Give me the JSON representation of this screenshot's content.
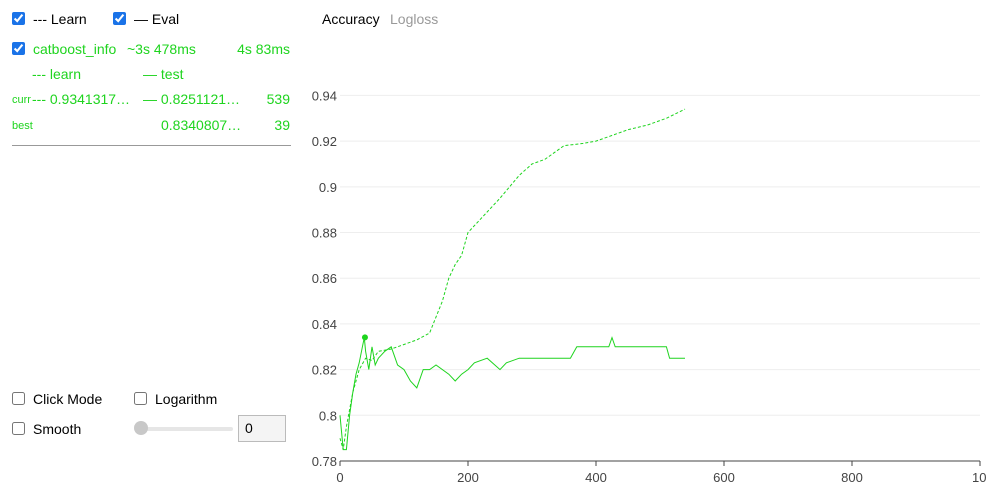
{
  "legend": {
    "learn_label": "--- Learn",
    "eval_label": "— Eval"
  },
  "run": {
    "name": "catboost_info",
    "elapsed": "~3s 478ms",
    "total": "4s 83ms"
  },
  "table": {
    "learn_header": "--- learn",
    "test_header": "— test",
    "curr_label": "curr",
    "curr_learn": "--- 0.9341317…",
    "curr_test": "— 0.8251121…",
    "curr_iter": "539",
    "best_label": "best",
    "best_test": "0.8340807…",
    "best_iter": "39"
  },
  "tabs": {
    "accuracy": "Accuracy",
    "logloss": "Logloss"
  },
  "controls": {
    "click_mode": "Click Mode",
    "logarithm": "Logarithm",
    "smooth": "Smooth",
    "smooth_value": "0"
  },
  "colors": {
    "series": "#1ed41e",
    "checkbox": "#1a73e8"
  },
  "chart_data": {
    "type": "line",
    "title": "Accuracy",
    "xlim": [
      0,
      1000
    ],
    "ylim": [
      0.78,
      0.945
    ],
    "xticks": [
      "0",
      "200",
      "400",
      "600",
      "800",
      "10"
    ],
    "yticks": [
      "0.78",
      "0.8",
      "0.82",
      "0.84",
      "0.86",
      "0.88",
      "0.9",
      "0.92",
      "0.94"
    ],
    "grid": true,
    "series": [
      {
        "name": "learn",
        "style": "dashed",
        "x": [
          0,
          5,
          10,
          20,
          30,
          40,
          50,
          60,
          80,
          100,
          120,
          140,
          160,
          170,
          180,
          190,
          200,
          220,
          250,
          280,
          300,
          320,
          350,
          380,
          400,
          420,
          450,
          480,
          510,
          539
        ],
        "y": [
          0.79,
          0.785,
          0.795,
          0.81,
          0.82,
          0.825,
          0.824,
          0.828,
          0.829,
          0.831,
          0.833,
          0.836,
          0.85,
          0.86,
          0.866,
          0.87,
          0.88,
          0.886,
          0.895,
          0.905,
          0.91,
          0.912,
          0.918,
          0.919,
          0.92,
          0.922,
          0.925,
          0.927,
          0.93,
          0.934
        ]
      },
      {
        "name": "test",
        "style": "solid",
        "x": [
          0,
          5,
          10,
          15,
          20,
          25,
          30,
          35,
          38,
          40,
          45,
          50,
          55,
          60,
          70,
          80,
          90,
          100,
          110,
          120,
          130,
          140,
          150,
          170,
          180,
          190,
          200,
          210,
          230,
          250,
          260,
          280,
          300,
          340,
          360,
          370,
          400,
          420,
          425,
          430,
          450,
          480,
          510,
          515,
          520,
          539
        ],
        "y": [
          0.8,
          0.785,
          0.785,
          0.8,
          0.81,
          0.818,
          0.823,
          0.83,
          0.834,
          0.828,
          0.82,
          0.83,
          0.822,
          0.825,
          0.828,
          0.83,
          0.822,
          0.82,
          0.815,
          0.812,
          0.82,
          0.82,
          0.822,
          0.818,
          0.815,
          0.818,
          0.82,
          0.823,
          0.825,
          0.82,
          0.823,
          0.825,
          0.825,
          0.825,
          0.825,
          0.83,
          0.83,
          0.83,
          0.834,
          0.83,
          0.83,
          0.83,
          0.83,
          0.825,
          0.825,
          0.825
        ]
      }
    ],
    "best_point": {
      "x": 39,
      "y": 0.8340807
    }
  }
}
